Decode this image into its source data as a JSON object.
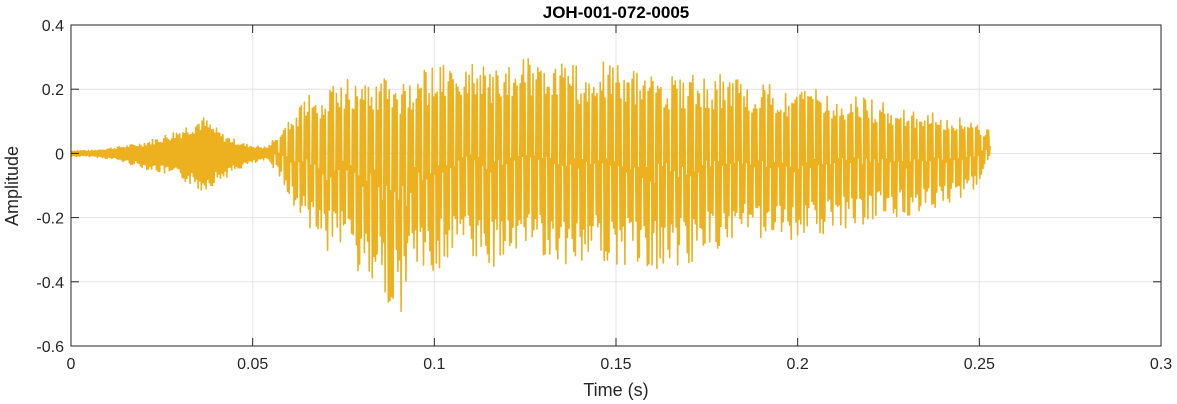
{
  "chart_data": {
    "type": "line",
    "title": "JOH-001-072-0005",
    "xlabel": "Time (s)",
    "ylabel": "Amplitude",
    "xlim": [
      0,
      0.3
    ],
    "ylim": [
      -0.6,
      0.4
    ],
    "x_ticks": [
      "0",
      "0.05",
      "0.1",
      "0.15",
      "0.2",
      "0.25",
      "0.3"
    ],
    "y_ticks": [
      "0.4",
      "0.2",
      "0",
      "-0.2",
      "-0.4",
      "-0.6"
    ],
    "grid": true,
    "legend": "none",
    "series_color": "#EDB120",
    "series": [
      {
        "description": "speech waveform",
        "x": [
          0,
          0.006,
          0.012,
          0.018,
          0.024,
          0.03,
          0.036,
          0.042,
          0.048,
          0.054,
          0.058,
          0.06,
          0.065,
          0.07,
          0.075,
          0.08,
          0.085,
          0.09,
          0.092,
          0.095,
          0.1,
          0.105,
          0.11,
          0.115,
          0.12,
          0.125,
          0.13,
          0.135,
          0.14,
          0.145,
          0.15,
          0.155,
          0.16,
          0.165,
          0.17,
          0.175,
          0.18,
          0.185,
          0.19,
          0.195,
          0.2,
          0.205,
          0.21,
          0.215,
          0.22,
          0.225,
          0.23,
          0.235,
          0.24,
          0.245,
          0.25,
          0.253
        ],
        "upper": [
          0.01,
          0.01,
          0.02,
          0.03,
          0.05,
          0.08,
          0.12,
          0.06,
          0.03,
          0.02,
          0.08,
          0.1,
          0.18,
          0.2,
          0.24,
          0.22,
          0.24,
          0.22,
          0.22,
          0.26,
          0.27,
          0.28,
          0.3,
          0.28,
          0.29,
          0.3,
          0.29,
          0.3,
          0.27,
          0.29,
          0.28,
          0.26,
          0.25,
          0.24,
          0.25,
          0.24,
          0.25,
          0.23,
          0.22,
          0.21,
          0.2,
          0.2,
          0.19,
          0.18,
          0.17,
          0.16,
          0.14,
          0.13,
          0.12,
          0.11,
          0.09,
          0.07
        ],
        "lower": [
          -0.01,
          -0.01,
          -0.02,
          -0.04,
          -0.06,
          -0.08,
          -0.12,
          -0.08,
          -0.04,
          -0.02,
          -0.08,
          -0.15,
          -0.24,
          -0.32,
          -0.32,
          -0.4,
          -0.46,
          -0.51,
          -0.48,
          -0.42,
          -0.38,
          -0.34,
          -0.32,
          -0.36,
          -0.34,
          -0.32,
          -0.32,
          -0.36,
          -0.34,
          -0.34,
          -0.36,
          -0.35,
          -0.38,
          -0.34,
          -0.36,
          -0.3,
          -0.3,
          -0.28,
          -0.28,
          -0.27,
          -0.28,
          -0.26,
          -0.24,
          -0.23,
          -0.22,
          -0.2,
          -0.2,
          -0.18,
          -0.16,
          -0.14,
          -0.1,
          0.0
        ]
      }
    ]
  }
}
